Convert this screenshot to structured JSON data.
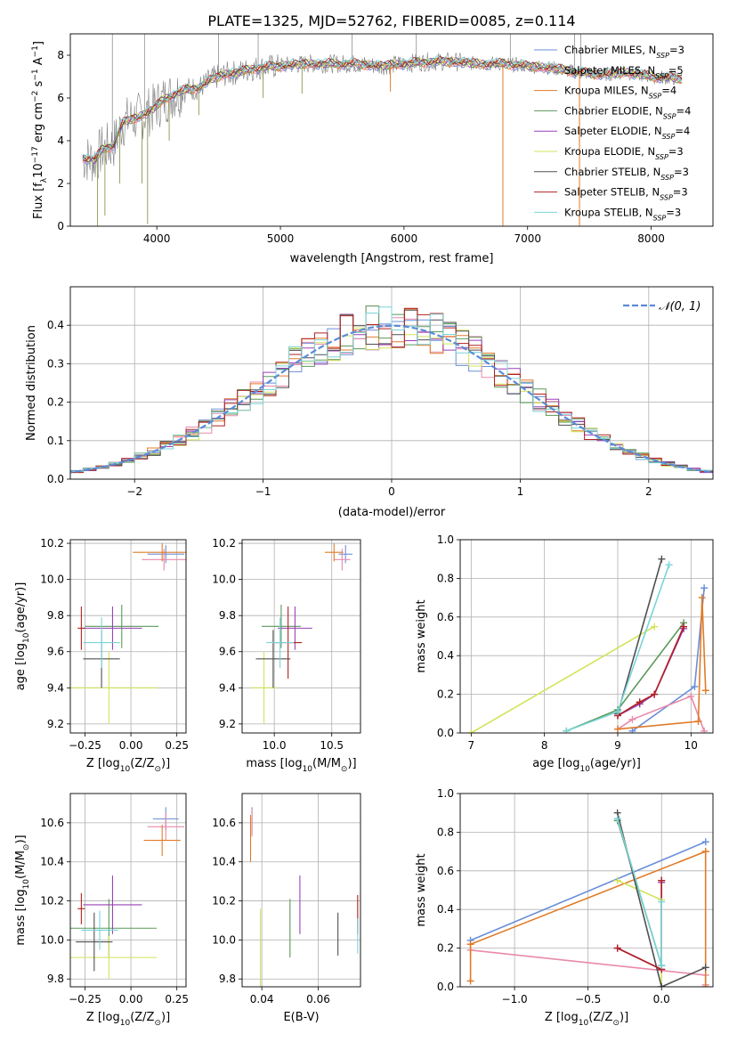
{
  "figure": {
    "title": "PLATE=1325, MJD=52762, FIBERID=0085, z=0.114"
  },
  "colors": {
    "series": [
      "#6a8fd8",
      "#e88aaa",
      "#e07b28",
      "#5a9a5a",
      "#9a40b8",
      "#d4e35a",
      "#505050",
      "#b02020",
      "#7ad4d8"
    ],
    "data_gray": "#7f7f7f",
    "gauss": "#5b8bd8"
  },
  "legend_entries": [
    {
      "name": "Chabrier MILES",
      "sub": "SSP",
      "n": "=3"
    },
    {
      "name": "Salpeter MILES",
      "sub": "SSP",
      "n": "=5"
    },
    {
      "name": "Kroupa MILES",
      "sub": "SSP",
      "n": "=4"
    },
    {
      "name": "Chabrier ELODIE",
      "sub": "SSP",
      "n": "=4"
    },
    {
      "name": "Salpeter ELODIE",
      "sub": "SSP",
      "n": "=4"
    },
    {
      "name": "Kroupa ELODIE",
      "sub": "SSP",
      "n": "=3"
    },
    {
      "name": "Chabrier STELIB",
      "sub": "SSP",
      "n": "=3"
    },
    {
      "name": "Salpeter STELIB",
      "sub": "SSP",
      "n": "=3"
    },
    {
      "name": "Kroupa STELIB",
      "sub": "SSP",
      "n": "=3"
    }
  ],
  "chart_data": [
    {
      "panel": "spectrum",
      "type": "line",
      "xlabel": "wavelength [Angstrom, rest frame]",
      "ylabel_parts": [
        "Flux [f",
        "λ",
        "10",
        "−17",
        " erg cm",
        "−2",
        " s",
        "−1",
        " A",
        "−1",
        "]"
      ],
      "xlim": [
        3300,
        8500
      ],
      "ylim": [
        0,
        9
      ],
      "xticks": [
        "4000",
        "5000",
        "6000",
        "7000",
        "8000"
      ],
      "yticks": [
        "0",
        "2",
        "4",
        "6",
        "8"
      ],
      "continuum": [
        [
          3400,
          3.2
        ],
        [
          3500,
          3.1
        ],
        [
          3560,
          3.6
        ],
        [
          3650,
          3.8
        ],
        [
          3720,
          4.8
        ],
        [
          3780,
          5.0
        ],
        [
          3850,
          5.1
        ],
        [
          3950,
          5.4
        ],
        [
          4050,
          5.9
        ],
        [
          4150,
          6.2
        ],
        [
          4250,
          6.4
        ],
        [
          4350,
          6.5
        ],
        [
          4450,
          6.9
        ],
        [
          4550,
          7.1
        ],
        [
          4650,
          7.2
        ],
        [
          4800,
          7.4
        ],
        [
          5000,
          7.5
        ],
        [
          5200,
          7.6
        ],
        [
          5400,
          7.6
        ],
        [
          5600,
          7.6
        ],
        [
          5800,
          7.5
        ],
        [
          6000,
          7.6
        ],
        [
          6200,
          7.7
        ],
        [
          6400,
          7.7
        ],
        [
          6600,
          7.6
        ],
        [
          6800,
          7.6
        ],
        [
          7000,
          7.5
        ],
        [
          7200,
          7.4
        ],
        [
          7400,
          7.2
        ],
        [
          7600,
          7.1
        ],
        [
          7800,
          7.2
        ],
        [
          8000,
          7.0
        ],
        [
          8250,
          6.9
        ]
      ],
      "spikes_down": [
        [
          3520,
          0.0
        ],
        [
          3580,
          0.5
        ],
        [
          3700,
          2.0
        ],
        [
          3880,
          2.0
        ],
        [
          3925,
          0.1
        ],
        [
          4100,
          4.0
        ],
        [
          4340,
          5.2
        ],
        [
          4860,
          6.0
        ],
        [
          5175,
          6.2
        ],
        [
          5890,
          6.3
        ],
        [
          6800,
          0.0
        ],
        [
          7420,
          0.0
        ]
      ],
      "spikes_up": [
        [
          3640,
          9.0
        ],
        [
          3900,
          9.0
        ],
        [
          4500,
          9.0
        ],
        [
          4820,
          9.0
        ],
        [
          5580,
          9.0
        ],
        [
          6100,
          9.0
        ],
        [
          6860,
          9.0
        ],
        [
          7380,
          9.0
        ],
        [
          7430,
          9.0
        ]
      ]
    },
    {
      "panel": "residual_hist",
      "type": "histogram",
      "xlabel": "(data-model)/error",
      "ylabel": "Normed distribution",
      "xlim": [
        -2.5,
        2.5
      ],
      "ylim": [
        0,
        0.5
      ],
      "xticks": [
        "−2",
        "−1",
        "0",
        "1",
        "2"
      ],
      "yticks": [
        "0.0",
        "0.1",
        "0.2",
        "0.3",
        "0.4"
      ],
      "gauss_label": "𝒩(0, 1)",
      "bin_width": 0.1
    },
    {
      "panel": "age_vs_Z",
      "type": "scatter",
      "xlabel_parts": [
        "Z [log",
        "10",
        "(Z/Z",
        "⊙",
        ")]"
      ],
      "ylabel_parts": [
        "age  [log",
        "10",
        "(age/yr)]"
      ],
      "xlim": [
        -0.33,
        0.3
      ],
      "ylim": [
        9.15,
        10.22
      ],
      "xticks": [
        -0.25,
        0.0,
        0.25
      ],
      "xtick_labels": [
        "−0.25",
        "0.00",
        "0.25"
      ],
      "yticks": [
        9.2,
        9.4,
        9.6,
        9.8,
        10.0,
        10.2
      ],
      "ytick_labels": [
        "9.2",
        "9.4",
        "9.6",
        "9.8",
        "10.0",
        "10.2"
      ],
      "points": [
        {
          "x": 0.19,
          "xerr": 0.1,
          "y": 10.14,
          "yerr": 0.05
        },
        {
          "x": 0.18,
          "xerr": 0.12,
          "y": 10.11,
          "yerr": 0.06
        },
        {
          "x": 0.17,
          "xerr": 0.16,
          "y": 10.15,
          "yerr": 0.05
        },
        {
          "x": -0.05,
          "xerr": 0.2,
          "y": 9.74,
          "yerr": 0.12
        },
        {
          "x": -0.1,
          "xerr": 0.16,
          "y": 9.73,
          "yerr": 0.12
        },
        {
          "x": -0.12,
          "xerr": 0.26,
          "y": 9.4,
          "yerr": 0.2
        },
        {
          "x": -0.16,
          "xerr": 0.1,
          "y": 9.56,
          "yerr": 0.16
        },
        {
          "x": -0.27,
          "xerr": 0.02,
          "y": 9.73,
          "yerr": 0.12
        },
        {
          "x": -0.16,
          "xerr": 0.1,
          "y": 9.65,
          "yerr": 0.14
        }
      ]
    },
    {
      "panel": "age_vs_mass",
      "type": "scatter",
      "xlabel_parts": [
        "mass [log",
        "10",
        "(M/M",
        "⊙",
        ")]"
      ],
      "xlim": [
        9.72,
        10.75
      ],
      "ylim": [
        9.15,
        10.22
      ],
      "xticks": [
        10.0,
        10.5
      ],
      "xtick_labels": [
        "10.0",
        "10.5"
      ],
      "yticks": [
        9.2,
        9.4,
        9.6,
        9.8,
        10.0,
        10.2
      ],
      "ytick_labels": [
        "9.2",
        "9.4",
        "9.6",
        "9.8",
        "10.0",
        "10.2"
      ],
      "points": [
        {
          "x": 10.62,
          "xerr": 0.06,
          "y": 10.14,
          "yerr": 0.05
        },
        {
          "x": 10.59,
          "xerr": 0.07,
          "y": 10.11,
          "yerr": 0.06
        },
        {
          "x": 10.52,
          "xerr": 0.08,
          "y": 10.15,
          "yerr": 0.05
        },
        {
          "x": 10.06,
          "xerr": 0.17,
          "y": 9.74,
          "yerr": 0.12
        },
        {
          "x": 10.18,
          "xerr": 0.15,
          "y": 9.73,
          "yerr": 0.12
        },
        {
          "x": 9.91,
          "xerr": 0.11,
          "y": 9.4,
          "yerr": 0.2
        },
        {
          "x": 9.99,
          "xerr": 0.15,
          "y": 9.56,
          "yerr": 0.16
        },
        {
          "x": 10.12,
          "xerr": 0.12,
          "y": 9.65,
          "yerr": 0.2
        },
        {
          "x": 10.05,
          "xerr": 0.12,
          "y": 9.65,
          "yerr": 0.14
        }
      ]
    },
    {
      "panel": "mass_weight_vs_age",
      "type": "line",
      "xlabel_parts": [
        "age  [log",
        "10",
        "(age/yr)]"
      ],
      "ylabel": "mass weight",
      "xlim": [
        6.85,
        10.3
      ],
      "ylim": [
        0,
        1
      ],
      "xticks": [
        7,
        8,
        9,
        10
      ],
      "xtick_labels": [
        "7",
        "8",
        "9",
        "10"
      ],
      "yticks": [
        0,
        0.2,
        0.4,
        0.6,
        0.8,
        1.0
      ],
      "ytick_labels": [
        "0.0",
        "0.2",
        "0.4",
        "0.6",
        "0.8",
        "1.0"
      ],
      "series": [
        {
          "x": [
            9.2,
            10.05,
            10.18
          ],
          "y": [
            0.01,
            0.24,
            0.75
          ]
        },
        {
          "x": [
            9.0,
            9.2,
            10.0,
            10.18
          ],
          "y": [
            0.02,
            0.07,
            0.19,
            0.01
          ]
        },
        {
          "x": [
            9.0,
            10.1,
            10.15,
            10.2
          ],
          "y": [
            0.02,
            0.06,
            0.7,
            0.22
          ]
        },
        {
          "x": [
            8.3,
            9.0,
            9.9
          ],
          "y": [
            0.01,
            0.12,
            0.57
          ]
        },
        {
          "x": [
            9.0,
            9.3,
            9.5,
            9.9
          ],
          "y": [
            0.09,
            0.15,
            0.2,
            0.54
          ]
        },
        {
          "x": [
            7.0,
            9.5
          ],
          "y": [
            0.0,
            0.55
          ]
        },
        {
          "x": [
            9.0,
            9.6
          ],
          "y": [
            0.1,
            0.9
          ]
        },
        {
          "x": [
            9.0,
            9.3,
            9.5,
            9.9
          ],
          "y": [
            0.09,
            0.16,
            0.2,
            0.55
          ]
        },
        {
          "x": [
            8.3,
            9.0,
            9.7
          ],
          "y": [
            0.01,
            0.11,
            0.87
          ]
        }
      ]
    },
    {
      "panel": "mass_vs_Z",
      "type": "scatter",
      "xlabel_parts": [
        "Z [log",
        "10",
        "(Z/Z",
        "⊙",
        ")]"
      ],
      "ylabel_parts": [
        "mass [log",
        "10",
        "(M/M",
        "⊙",
        ")]"
      ],
      "xlim": [
        -0.33,
        0.3
      ],
      "ylim": [
        9.76,
        10.75
      ],
      "xticks": [
        -0.25,
        0.0,
        0.25
      ],
      "xtick_labels": [
        "−0.25",
        "0.00",
        "0.25"
      ],
      "yticks": [
        9.8,
        10.0,
        10.2,
        10.4,
        10.6
      ],
      "ytick_labels": [
        "9.8",
        "10.0",
        "10.2",
        "10.4",
        "10.6"
      ],
      "points": [
        {
          "x": 0.19,
          "xerr": 0.07,
          "y": 10.62,
          "yerr": 0.06
        },
        {
          "x": 0.19,
          "xerr": 0.1,
          "y": 10.58,
          "yerr": 0.07
        },
        {
          "x": 0.17,
          "xerr": 0.1,
          "y": 10.51,
          "yerr": 0.08
        },
        {
          "x": -0.12,
          "xerr": 0.26,
          "y": 10.06,
          "yerr": 0.15
        },
        {
          "x": -0.1,
          "xerr": 0.16,
          "y": 10.18,
          "yerr": 0.15
        },
        {
          "x": -0.12,
          "xerr": 0.26,
          "y": 9.91,
          "yerr": 0.11
        },
        {
          "x": -0.2,
          "xerr": 0.1,
          "y": 9.99,
          "yerr": 0.15
        },
        {
          "x": -0.27,
          "xerr": 0.02,
          "y": 10.16,
          "yerr": 0.08
        },
        {
          "x": -0.17,
          "xerr": 0.1,
          "y": 10.05,
          "yerr": 0.1
        }
      ]
    },
    {
      "panel": "mass_vs_ebv",
      "type": "scatter",
      "xlabel": "E(B-V)",
      "xlim": [
        0.033,
        0.075
      ],
      "ylim": [
        9.76,
        10.75
      ],
      "xticks": [
        0.04,
        0.06
      ],
      "xtick_labels": [
        "0.04",
        "0.06"
      ],
      "yticks": [
        9.8,
        10.0,
        10.2,
        10.4,
        10.6
      ],
      "ytick_labels": [
        "9.8",
        "10.0",
        "10.2",
        "10.4",
        "10.6"
      ],
      "points": [
        {
          "x": 0.0365,
          "y": 10.61,
          "yerr": 0.07
        },
        {
          "x": 0.0365,
          "y": 10.6,
          "yerr": 0.07
        },
        {
          "x": 0.036,
          "y": 10.52,
          "yerr": 0.12
        },
        {
          "x": 0.05,
          "y": 10.06,
          "yerr": 0.15
        },
        {
          "x": 0.0535,
          "y": 10.18,
          "yerr": 0.15
        },
        {
          "x": 0.0395,
          "y": 9.96,
          "yerr": 0.2
        },
        {
          "x": 0.067,
          "y": 10.03,
          "yerr": 0.11
        },
        {
          "x": 0.074,
          "y": 10.13,
          "yerr": 0.1
        },
        {
          "x": 0.074,
          "y": 10.02,
          "yerr": 0.09
        }
      ]
    },
    {
      "panel": "mass_weight_vs_Z",
      "type": "line",
      "xlabel_parts": [
        "Z [log",
        "10",
        "(Z/Z",
        "⊙",
        ")]"
      ],
      "ylabel": "mass weight",
      "xlim": [
        -1.37,
        0.35
      ],
      "ylim": [
        0,
        1
      ],
      "xticks": [
        -1.0,
        -0.5,
        0.0
      ],
      "xtick_labels": [
        "−1.0",
        "−0.5",
        "0.0"
      ],
      "yticks": [
        0,
        0.2,
        0.4,
        0.6,
        0.8,
        1.0
      ],
      "ytick_labels": [
        "0.0",
        "0.2",
        "0.4",
        "0.6",
        "0.8",
        "1.0"
      ],
      "series": [
        {
          "x": [
            -1.3,
            0.3
          ],
          "y": [
            0.24,
            0.75
          ]
        },
        {
          "x": [
            -1.3,
            0.3,
            0.3
          ],
          "y": [
            0.19,
            0.06,
            0.01
          ]
        },
        {
          "x": [
            -1.3,
            -1.3,
            0.3,
            0.3,
            0.3
          ],
          "y": [
            0.03,
            0.22,
            0.7,
            0.7,
            0.0
          ]
        },
        {
          "x": [
            -0.3,
            0.0,
            0.0
          ],
          "y": [
            0.86,
            0.11,
            0.55
          ]
        },
        {
          "x": [
            -0.3,
            0.0,
            0.0
          ],
          "y": [
            0.2,
            0.09,
            0.54
          ]
        },
        {
          "x": [
            -0.3,
            0.0,
            0.0
          ],
          "y": [
            0.55,
            0.45,
            0.0
          ]
        },
        {
          "x": [
            -0.3,
            0.0,
            0.3
          ],
          "y": [
            0.9,
            0.0,
            0.1
          ]
        },
        {
          "x": [
            -0.3,
            0.0,
            0.0
          ],
          "y": [
            0.2,
            0.09,
            0.55
          ]
        },
        {
          "x": [
            -0.3,
            0.0,
            0.0
          ],
          "y": [
            0.87,
            0.11,
            0.44
          ]
        }
      ]
    }
  ]
}
